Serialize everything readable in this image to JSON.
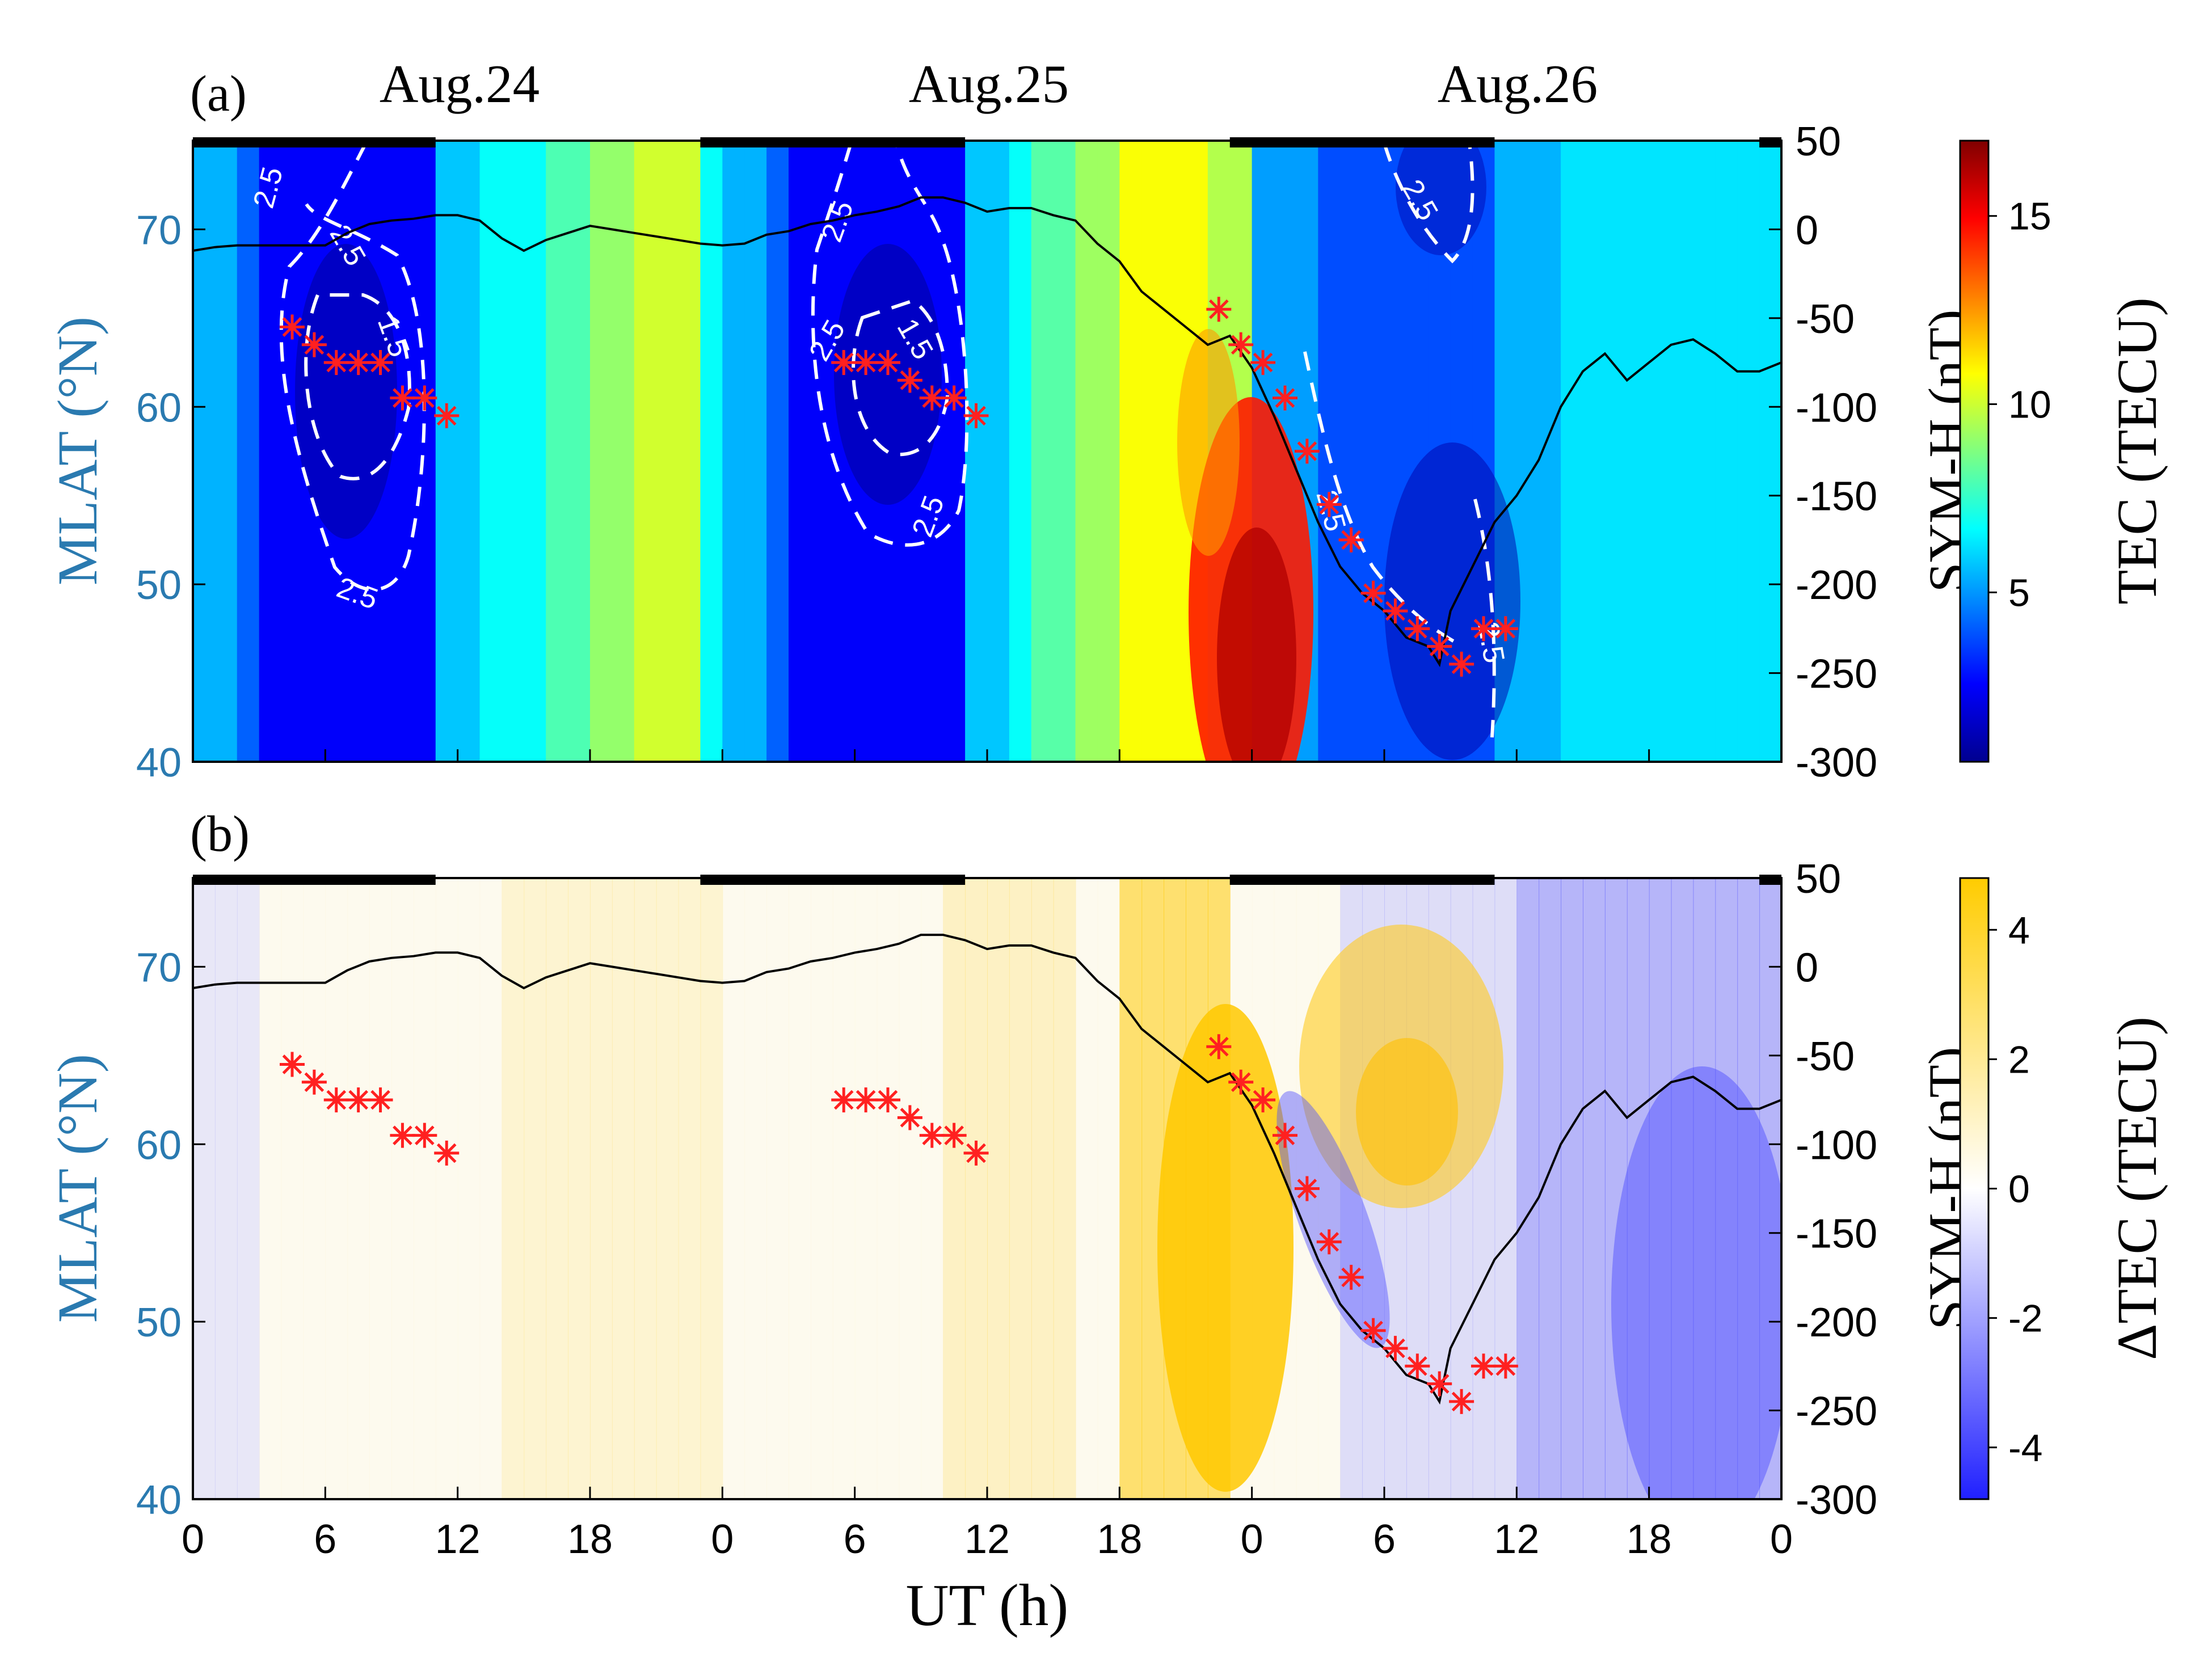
{
  "chart_data": [
    {
      "panel": "a",
      "type": "heatmap",
      "panel_label": "(a)",
      "day_labels": [
        "Aug.24",
        "Aug.25",
        "Aug.26"
      ],
      "xlabel": "UT (h)",
      "ylabel_left": "MLAT (°N)",
      "ylabel_right": "SYM-H (nT)",
      "colorbar_label": "TEC (TECU)",
      "x_range_hours": [
        0,
        72
      ],
      "x_ticks": [
        0,
        6,
        12,
        18,
        24,
        30,
        36,
        42,
        48,
        54,
        60,
        66,
        72
      ],
      "x_tick_labels": [
        "0",
        "6",
        "12",
        "18",
        "0",
        "6",
        "12",
        "18",
        "0",
        "6",
        "12",
        "18",
        "0"
      ],
      "ylim_left": [
        40,
        75
      ],
      "y_ticks_left": [
        40,
        50,
        60,
        70
      ],
      "y_tick_labels_left": [
        "40",
        "50",
        "60",
        "70"
      ],
      "ylim_right": [
        -300,
        50
      ],
      "y_ticks_right": [
        50,
        0,
        -50,
        -100,
        -150,
        -200,
        -250,
        -300
      ],
      "y_tick_labels_right": [
        "50",
        "0",
        "-50",
        "-100",
        "-150",
        "-200",
        "-250",
        "-300"
      ],
      "colorbar_range": [
        0.5,
        17
      ],
      "colorbar_ticks": [
        5,
        10,
        15
      ],
      "colorbar_tick_labels": [
        "5",
        "10",
        "15"
      ],
      "contour_labels": [
        "2.5",
        "2.5",
        "1.5",
        "2.5",
        "2.5",
        "2.5",
        "1.5",
        "2.5",
        "2.5",
        "2.5",
        "2.5"
      ],
      "night_bars_hours": [
        [
          0,
          11
        ],
        [
          23,
          35
        ],
        [
          47,
          59
        ],
        [
          71,
          72
        ]
      ],
      "trough_minimum_ut_h": [
        4.5,
        5.5,
        6.5,
        7.5,
        8.5,
        9.5,
        10.5,
        11.5,
        29.5,
        30.5,
        31.5,
        32.5,
        33.5,
        34.5,
        35.5,
        46.5,
        47.5,
        48.5,
        49.5,
        50.5,
        51.5,
        52.5,
        53.5,
        54.5,
        55.5,
        56.5,
        57.5,
        58.5,
        59.5
      ],
      "trough_minimum_mlat": [
        64.5,
        63.5,
        62.5,
        62.5,
        62.5,
        60.5,
        60.5,
        59.5,
        62.5,
        62.5,
        62.5,
        61.5,
        60.5,
        60.5,
        59.5,
        65.5,
        63.5,
        62.5,
        60.5,
        57.5,
        54.5,
        52.5,
        49.5,
        48.5,
        47.5,
        46.5,
        45.5,
        47.5,
        47.5
      ]
    },
    {
      "panel": "b",
      "type": "heatmap",
      "panel_label": "(b)",
      "xlabel": "UT (h)",
      "ylabel_left": "MLAT (°N)",
      "ylabel_right": "SYM-H (nT)",
      "colorbar_label": "ΔTEC (TECU)",
      "x_range_hours": [
        0,
        72
      ],
      "ylim_left": [
        40,
        75
      ],
      "ylim_right": [
        -300,
        50
      ],
      "colorbar_range": [
        -4.8,
        4.8
      ],
      "colorbar_ticks": [
        -4,
        -2,
        0,
        2,
        4
      ],
      "colorbar_tick_labels": [
        "-4",
        "-2",
        "0",
        "2",
        "4"
      ],
      "trough_minimum_ut_h": [
        4.5,
        5.5,
        6.5,
        7.5,
        8.5,
        9.5,
        10.5,
        11.5,
        29.5,
        30.5,
        31.5,
        32.5,
        33.5,
        34.5,
        35.5,
        46.5,
        47.5,
        48.5,
        49.5,
        50.5,
        51.5,
        52.5,
        53.5,
        54.5,
        55.5,
        56.5,
        57.5,
        58.5,
        59.5
      ],
      "trough_minimum_mlat": [
        64.5,
        63.5,
        62.5,
        62.5,
        62.5,
        60.5,
        60.5,
        59.5,
        62.5,
        62.5,
        62.5,
        61.5,
        60.5,
        60.5,
        59.5,
        65.5,
        63.5,
        62.5,
        60.5,
        57.5,
        54.5,
        52.5,
        49.5,
        48.5,
        47.5,
        46.5,
        45.5,
        47.5,
        47.5
      ]
    }
  ],
  "sym_h_series": {
    "name": "SYM-H",
    "ut_h": [
      0,
      1,
      2,
      3,
      4,
      5,
      6,
      7,
      8,
      9,
      10,
      11,
      12,
      13,
      14,
      15,
      16,
      17,
      18,
      19,
      20,
      21,
      22,
      23,
      24,
      25,
      26,
      27,
      28,
      29,
      30,
      31,
      32,
      33,
      34,
      35,
      36,
      37,
      38,
      39,
      40,
      41,
      42,
      43,
      44,
      45,
      46,
      47,
      48,
      49,
      50,
      51,
      52,
      53,
      54,
      55,
      56,
      56.5,
      57,
      58,
      59,
      60,
      61,
      62,
      63,
      64,
      65,
      66,
      67,
      68,
      69,
      70,
      71,
      72
    ],
    "values_nT": [
      -12,
      -10,
      -9,
      -9,
      -9,
      -9,
      -9,
      -2,
      3,
      5,
      6,
      8,
      8,
      5,
      -5,
      -12,
      -6,
      -2,
      2,
      0,
      -2,
      -4,
      -6,
      -8,
      -9,
      -8,
      -3,
      -1,
      3,
      5,
      8,
      10,
      13,
      18,
      18,
      15,
      10,
      12,
      12,
      8,
      5,
      -8,
      -18,
      -35,
      -45,
      -55,
      -65,
      -60,
      -78,
      -105,
      -135,
      -165,
      -190,
      -205,
      -215,
      -230,
      -235,
      -245,
      -215,
      -190,
      -165,
      -150,
      -130,
      -100,
      -80,
      -70,
      -85,
      -75,
      -65,
      -62,
      -70,
      -80,
      -80,
      -75
    ]
  },
  "colors": {
    "marker": "#ff2020",
    "sym_h_line": "#000000",
    "left_axis": "#2a7ab0",
    "contour": "#ffffff"
  }
}
